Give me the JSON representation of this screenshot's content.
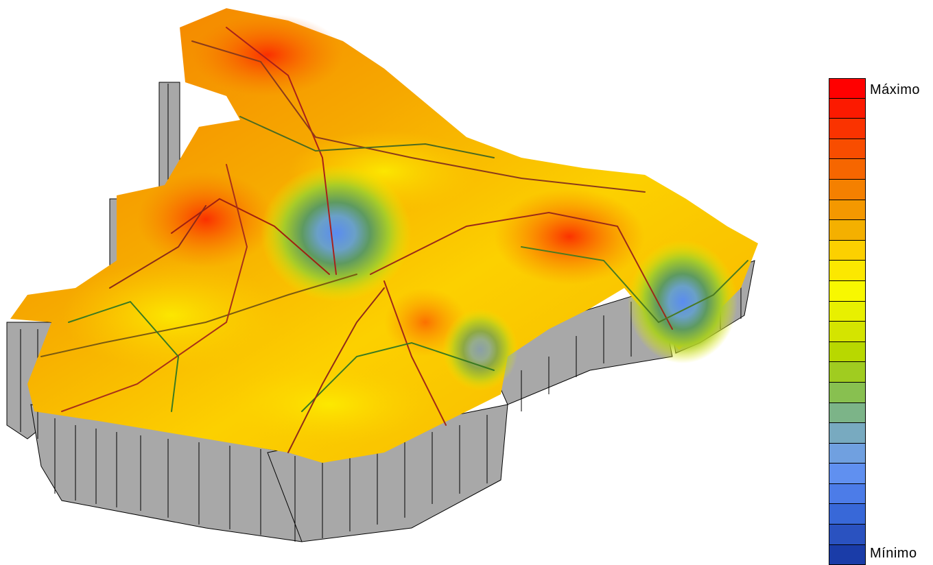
{
  "legend": {
    "max_label": "Máximo",
    "min_label": "Mínimo",
    "colors": [
      "#ff0000",
      "#fc1a00",
      "#fa3300",
      "#f84d00",
      "#f66600",
      "#f48000",
      "#f49800",
      "#f4b000",
      "#fcd000",
      "#fce800",
      "#f8f800",
      "#e8f000",
      "#d4e400",
      "#b8d800",
      "#a0cc20",
      "#88c050",
      "#7cb488",
      "#78aac0",
      "#70a0e0",
      "#6090f0",
      "#4c7ce8",
      "#3868d8",
      "#2a52c0",
      "#1a3ca8"
    ]
  }
}
